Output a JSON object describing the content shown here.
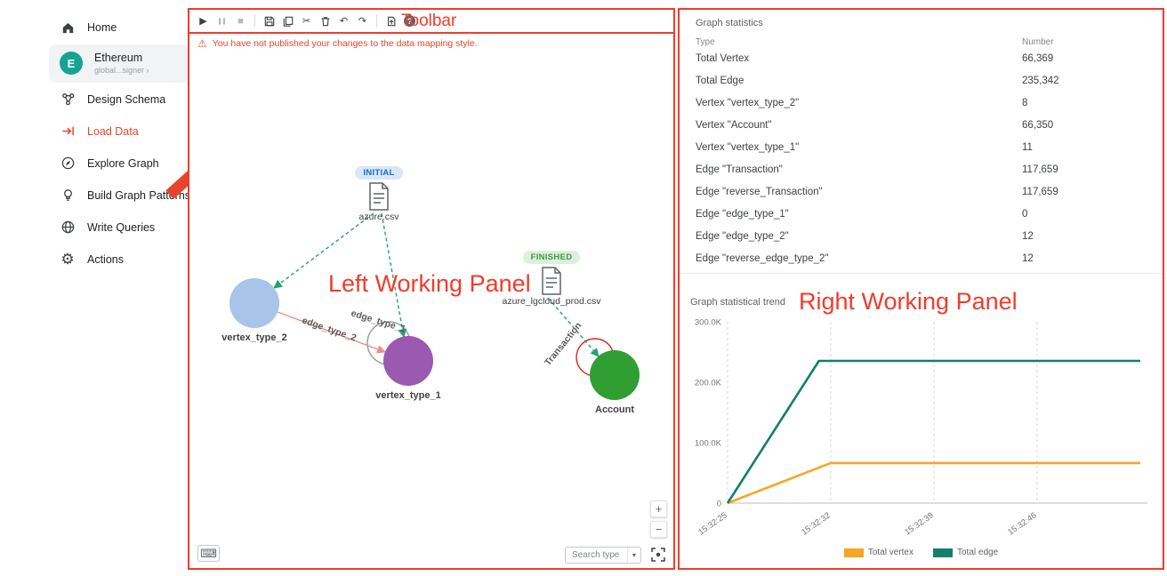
{
  "annotations": {
    "toolbar_label": "Toolbar",
    "left_panel_label": "Left Working Panel",
    "right_panel_label": "Right Working Panel"
  },
  "colors": {
    "annotation_red": "#f23b2a",
    "active_nav": "#e8432d",
    "avatar_teal": "#16a394",
    "mapping_arrow_teal": "#1ea471",
    "edge_red": "#ef8d82",
    "loop_gray": "#9e9e9e",
    "loop_red": "#d93025",
    "initial_badge_bg": "#d8e6f8",
    "initial_badge_text": "#1a6fc4",
    "finished_badge_bg": "#ddefdd",
    "finished_badge_text": "#3d9a47"
  },
  "sidebar": {
    "avatar_letter": "E",
    "items": [
      {
        "label": "Home"
      },
      {
        "label": "Ethereum",
        "sublabel": "global...signer ›"
      },
      {
        "label": "Design Schema"
      },
      {
        "label": "Load Data"
      },
      {
        "label": "Explore Graph"
      },
      {
        "label": "Build Graph Patterns"
      },
      {
        "label": "Write Queries"
      },
      {
        "label": "Actions"
      }
    ]
  },
  "toolbar": {
    "icons": [
      "run-loading",
      "pause-loading",
      "stop-loading",
      "save",
      "save-as",
      "cut",
      "delete",
      "undo",
      "redo",
      "publish",
      "help"
    ]
  },
  "warning": {
    "text": "You have not published your changes to the data mapping style."
  },
  "canvas": {
    "files": [
      {
        "name": "azure.csv",
        "status": "INITIAL"
      },
      {
        "name": "azure_lgcloud_prod.csv",
        "status": "FINISHED"
      }
    ],
    "vertices": [
      {
        "label": "vertex_type_2",
        "color": "#a9c4e9"
      },
      {
        "label": "vertex_type_1",
        "color": "#9b59b0"
      },
      {
        "label": "Account",
        "color": "#2f9e33"
      }
    ],
    "edge_labels": {
      "edge_type_2": "edge_type_2",
      "edge_type_1": "edge_type_1",
      "transaction": "Transaction"
    },
    "controls": {
      "search_placeholder": "Search type",
      "zoom_in": "+",
      "zoom_out": "−"
    }
  },
  "stats": {
    "title": "Graph statistics",
    "columns": [
      "Type",
      "Number"
    ],
    "rows": [
      {
        "type": "Total Vertex",
        "number": "66,369"
      },
      {
        "type": "Total Edge",
        "number": "235,342"
      },
      {
        "type": "Vertex \"vertex_type_2\"",
        "number": "8"
      },
      {
        "type": "Vertex \"Account\"",
        "number": "66,350"
      },
      {
        "type": "Vertex \"vertex_type_1\"",
        "number": "11"
      },
      {
        "type": "Edge \"Transaction\"",
        "number": "117,659"
      },
      {
        "type": "Edge \"reverse_Transaction\"",
        "number": "117,659"
      },
      {
        "type": "Edge \"edge_type_1\"",
        "number": "0"
      },
      {
        "type": "Edge \"edge_type_2\"",
        "number": "12"
      },
      {
        "type": "Edge \"reverse_edge_type_2\"",
        "number": "12"
      }
    ]
  },
  "chart_data": {
    "type": "line",
    "title": "Graph statistical trend",
    "x_tick_labels": [
      "15:32:25",
      "15:32:32",
      "15:32:39",
      "15:32:46"
    ],
    "x_ticks_seconds": [
      25,
      32,
      39,
      46
    ],
    "x_range_seconds": [
      25,
      53
    ],
    "ylim": [
      0,
      300000
    ],
    "y_tick_labels": [
      "0",
      "100.0K",
      "200.0K",
      "300.0K"
    ],
    "grid": "vertical-dashed",
    "legend_position": "bottom",
    "series": [
      {
        "name": "Total vertex",
        "color": "#f5a623",
        "points": [
          [
            25,
            0
          ],
          [
            32,
            66369
          ],
          [
            53,
            66369
          ]
        ]
      },
      {
        "name": "Total edge",
        "color": "#127f6b",
        "points": [
          [
            25,
            0
          ],
          [
            31.2,
            235342
          ],
          [
            53,
            235342
          ]
        ]
      }
    ]
  }
}
